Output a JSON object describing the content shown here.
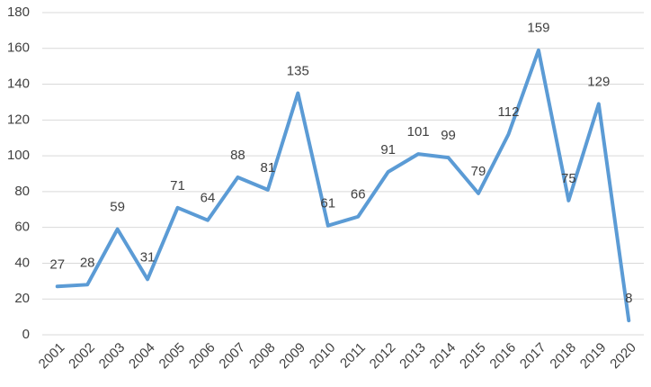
{
  "chart_data": {
    "type": "line",
    "categories": [
      "2001",
      "2002",
      "2003",
      "2004",
      "2005",
      "2006",
      "2007",
      "2008",
      "2009",
      "2010",
      "2011",
      "2012",
      "2013",
      "2014",
      "2015",
      "2016",
      "2017",
      "2018",
      "2019",
      "2020"
    ],
    "values": [
      27,
      28,
      59,
      31,
      71,
      64,
      88,
      81,
      135,
      61,
      66,
      91,
      101,
      99,
      79,
      112,
      159,
      75,
      129,
      8
    ],
    "color": "#5b9bd5",
    "ylim": [
      0,
      180
    ],
    "yticks": [
      0,
      20,
      40,
      60,
      80,
      100,
      120,
      140,
      160,
      180
    ],
    "grid": true
  }
}
